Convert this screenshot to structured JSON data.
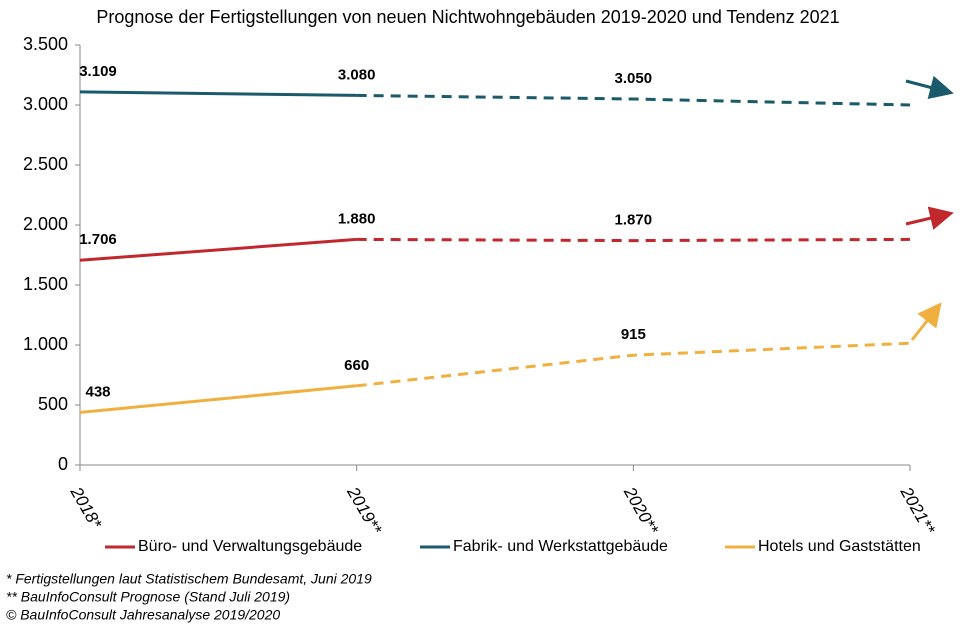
{
  "chart_data": {
    "type": "line",
    "title": "Prognose der Fertigstellungen  von neuen Nichtwohngebäuden  2019-2020 und Tendenz  2021",
    "categories": [
      "2018*",
      "2019**",
      "2020**",
      "2021**"
    ],
    "series": [
      {
        "name": "Büro- und Verwaltungsgebäude",
        "color": "#c0282d",
        "values": [
          1706,
          1880,
          1870,
          1880
        ],
        "value_labels": [
          "1.706",
          "1.880",
          "1.870",
          null
        ]
      },
      {
        "name": "Fabrik- und Werkstattgebäude",
        "color": "#1b5a6b",
        "values": [
          3109,
          3080,
          3050,
          3000
        ],
        "value_labels": [
          "3.109",
          "3.080",
          "3.050",
          null
        ]
      },
      {
        "name": "Hotels und Gaststätten",
        "color": "#f0b040",
        "values": [
          438,
          660,
          915,
          1015
        ],
        "value_labels": [
          "438",
          "660",
          "915",
          null
        ]
      }
    ],
    "ylim": [
      0,
      3500
    ],
    "yticks": [
      0,
      500,
      {
        "value": 1000,
        "label": "1.000"
      },
      {
        "value": 1500,
        "label": "1.500"
      },
      {
        "value": 2000,
        "label": "2.000"
      },
      {
        "value": 2500,
        "label": "2.500"
      },
      {
        "value": 3000,
        "label": "3.000"
      },
      {
        "value": 3500,
        "label": "3.500"
      }
    ],
    "legend": "bottom",
    "notes": [
      "* Fertigstellungen laut Statistischem Bundesamt, Juni 2019",
      "** BauInfoConsult Prognose (Stand Juli 2019)",
      "© BauInfoConsult Jahresanalyse 2019/2020"
    ]
  }
}
